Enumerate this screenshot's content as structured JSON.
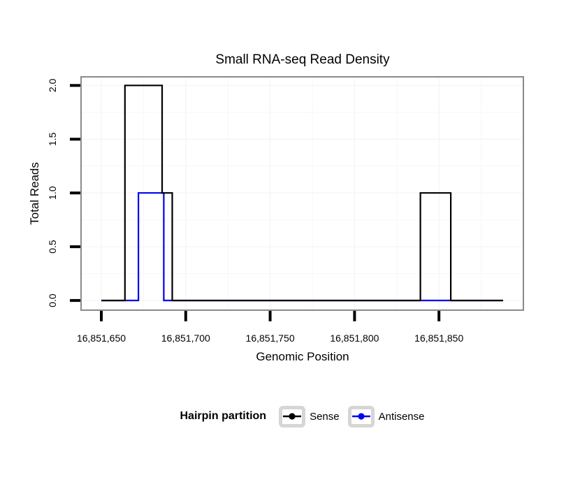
{
  "page": {
    "background": "#ffffff"
  },
  "chart_data": {
    "type": "line",
    "subtype": "step",
    "title": "Small RNA-seq Read Density",
    "xlabel": "Genomic Position",
    "ylabel": "Total Reads",
    "xlim": [
      16851638,
      16851900
    ],
    "ylim": [
      -0.09,
      2.08
    ],
    "x_ticks": [
      {
        "value": 16851650,
        "label": "16,851,650"
      },
      {
        "value": 16851700,
        "label": "16,851,700"
      },
      {
        "value": 16851750,
        "label": "16,851,750"
      },
      {
        "value": 16851800,
        "label": "16,851,800"
      },
      {
        "value": 16851850,
        "label": "16,851,850"
      }
    ],
    "y_ticks": [
      {
        "value": 0.0,
        "label": "0.0"
      },
      {
        "value": 0.5,
        "label": "0.5"
      },
      {
        "value": 1.0,
        "label": "1.0"
      },
      {
        "value": 1.5,
        "label": "1.5"
      },
      {
        "value": 2.0,
        "label": "2.0"
      }
    ],
    "grid": "major and minor gridlines, very light gray",
    "legend_position": "bottom",
    "series": [
      {
        "name": "Sense",
        "color": "#000000",
        "points": [
          [
            16851650,
            0
          ],
          [
            16851664,
            0
          ],
          [
            16851664,
            2
          ],
          [
            16851686,
            2
          ],
          [
            16851686,
            1
          ],
          [
            16851692,
            1
          ],
          [
            16851692,
            0
          ],
          [
            16851839,
            0
          ],
          [
            16851839,
            1
          ],
          [
            16851857,
            1
          ],
          [
            16851857,
            0
          ],
          [
            16851888,
            0
          ]
        ]
      },
      {
        "name": "Antisense",
        "color": "#0000EE",
        "points": [
          [
            16851650,
            0
          ],
          [
            16851672,
            0
          ],
          [
            16851672,
            1
          ],
          [
            16851687,
            1
          ],
          [
            16851687,
            0
          ],
          [
            16851888,
            0
          ]
        ]
      }
    ]
  },
  "legend": {
    "title": "Hairpin partition",
    "items": [
      {
        "label": "Sense",
        "color": "#000000"
      },
      {
        "label": "Antisense",
        "color": "#0000EE"
      }
    ]
  },
  "colors": {
    "plot_border": "#8a8a8a",
    "grid_major": "#f2f2f2",
    "grid_minor": "#f7f7f7",
    "tick": "#000000",
    "key_box_border": "#d6d6d6"
  }
}
